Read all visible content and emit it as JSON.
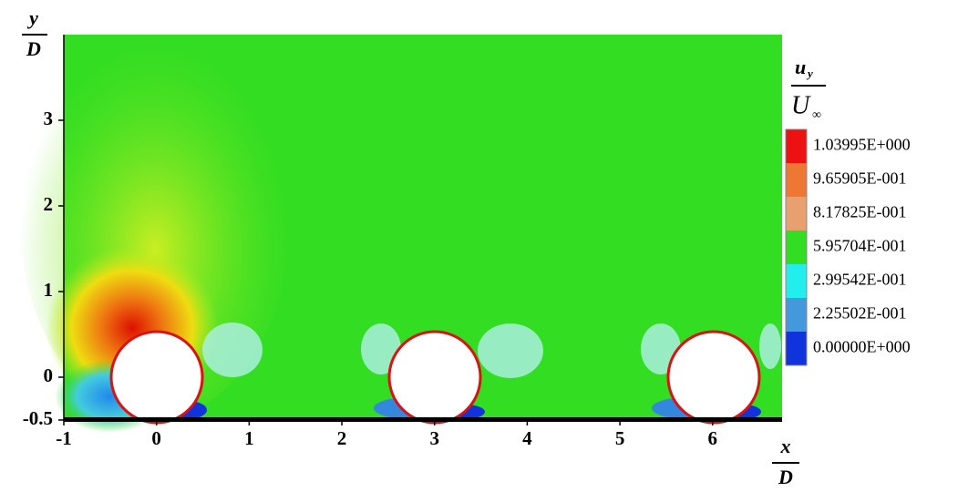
{
  "chart_data": {
    "type": "contour",
    "xlabel": {
      "numerator": "x",
      "denominator": "D"
    },
    "ylabel": {
      "numerator": "y",
      "denominator": "D"
    },
    "xlim": [
      -1,
      6.75
    ],
    "ylim": [
      -0.5,
      4
    ],
    "xticks": [
      -1,
      0,
      1,
      2,
      3,
      4,
      5,
      6
    ],
    "yticks": [
      -0.5,
      0,
      1,
      2,
      3
    ],
    "colorbar": {
      "title": {
        "numerator": "u",
        "subscript": "y",
        "denominator": "U",
        "denominator_subscript": "∞"
      },
      "levels": [
        {
          "value": 1.03995,
          "label": "1.03995E+000"
        },
        {
          "value": 0.965905,
          "label": "9.65905E-001"
        },
        {
          "value": 0.817825,
          "label": "8.17825E-001"
        },
        {
          "value": 0.595704,
          "label": "5.95704E-001"
        },
        {
          "value": 0.299542,
          "label": "2.99542E-001"
        },
        {
          "value": 0.225502,
          "label": "2.25502E-001"
        },
        {
          "value": 0,
          "label": "0.00000E+000"
        }
      ],
      "colors": [
        "#ee1111",
        "#ee7733",
        "#e8a070",
        "#33dd22",
        "#22eeee",
        "#4499dd",
        "#1133dd"
      ]
    }
  }
}
